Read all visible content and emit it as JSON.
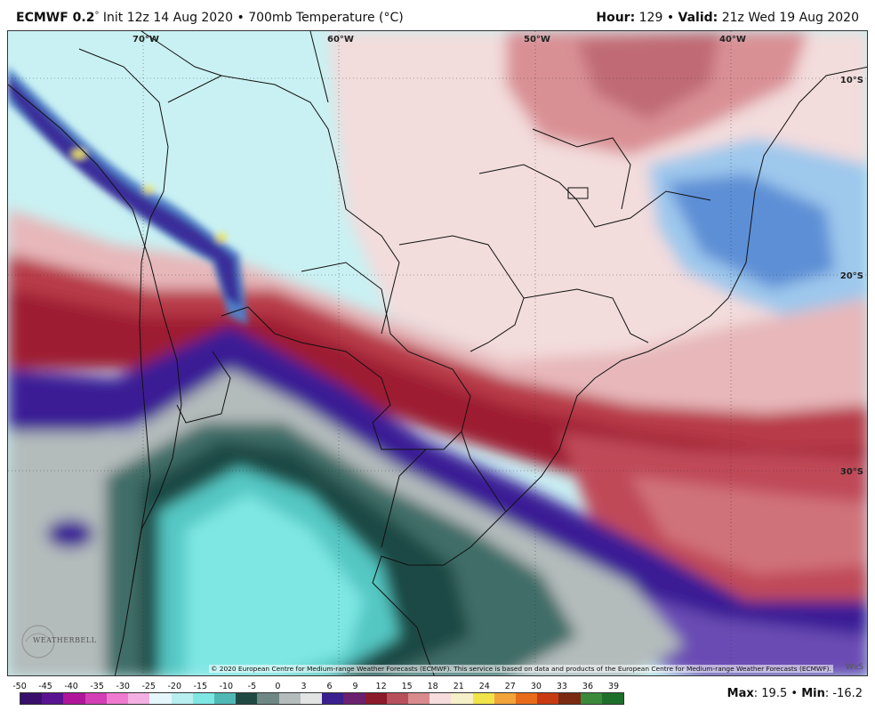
{
  "header": {
    "model": "ECMWF 0.2",
    "degree_sign": "°",
    "init_text": "Init 12z 14 Aug 2020",
    "bullet": "•",
    "product": "700mb Temperature (°C)",
    "hour_label": "Hour:",
    "hour_value": "129",
    "valid_label": "Valid:",
    "valid_value": "21z Wed 19 Aug 2020"
  },
  "map": {
    "longitude_labels": [
      "70°W",
      "60°W",
      "50°W",
      "40°W"
    ],
    "latitude_labels": [
      "10°S",
      "20°S",
      "30°S"
    ],
    "credit": "© 2020 European Centre for Medium-range Weather Forecasts (ECMWF). This service is based on data and products of the European Centre for Medium-range Weather Forecasts (ECMWF).",
    "logo_text": "WEATHERBELL",
    "corner_tag": "WxS"
  },
  "legend": {
    "ticks": [
      "-50",
      "-45",
      "-40",
      "-35",
      "-30",
      "-25",
      "-20",
      "-15",
      "-10",
      "-5",
      "0",
      "3",
      "6",
      "9",
      "12",
      "15",
      "18",
      "21",
      "24",
      "27",
      "30",
      "33",
      "36",
      "39"
    ],
    "colors": {
      "deep_purple": "#3a0f6b",
      "magenta": "#b0169a",
      "pink": "#f07ad0",
      "white_blue": "#e6f7fb",
      "aqua": "#7ee7e4",
      "teal_dark": "#1f4a44",
      "grey": "#b5bcbc",
      "indigo": "#3a1f8f",
      "red_dark": "#8b1a2a",
      "salmon": "#d98a8c",
      "pale_pink": "#f6dcdc",
      "yellow": "#f0e44a",
      "orange": "#e86b1a",
      "dark_green": "#1e6f2a"
    }
  },
  "stats": {
    "max_label": "Max",
    "max_value": "19.5",
    "min_label": "Min",
    "min_value": "-16.2",
    "separator": "•"
  }
}
